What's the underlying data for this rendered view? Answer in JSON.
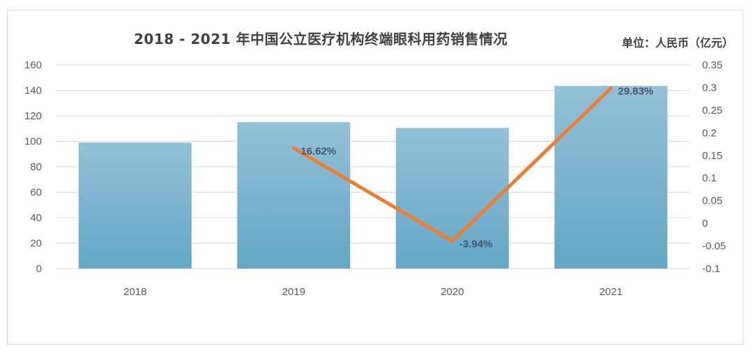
{
  "title": "2018 - 2021 年中国公立医疗机构终端眼科用药销售情况",
  "unit_label": "单位：人民币（亿元）",
  "colors": {
    "bar_top": "#93c1d9",
    "bar_bottom": "#63a6c6",
    "line": "#ed7d31",
    "grid": "#d9d9d9",
    "label": "#44546a"
  },
  "chart_data": {
    "type": "bar",
    "categories": [
      "2018",
      "2019",
      "2020",
      "2021"
    ],
    "series": [
      {
        "type": "bar",
        "axis": "left",
        "values": [
          99,
          115,
          110.5,
          143.5
        ]
      },
      {
        "type": "line",
        "axis": "right",
        "values": [
          null,
          0.1662,
          -0.0394,
          0.2983
        ]
      }
    ],
    "data_labels": [
      "",
      "16.62%",
      "-3.94%",
      "29.83%"
    ],
    "y_left": {
      "ylim": [
        0,
        160
      ],
      "ticks": [
        "0",
        "20",
        "40",
        "60",
        "80",
        "100",
        "120",
        "140",
        "160"
      ]
    },
    "y_right": {
      "ylim": [
        -0.1,
        0.35
      ],
      "ticks": [
        "-0.1",
        "-0.05",
        "0",
        "0.05",
        "0.1",
        "0.15",
        "0.2",
        "0.25",
        "0.3",
        "0.35"
      ]
    },
    "grid": true,
    "legend": "none"
  }
}
